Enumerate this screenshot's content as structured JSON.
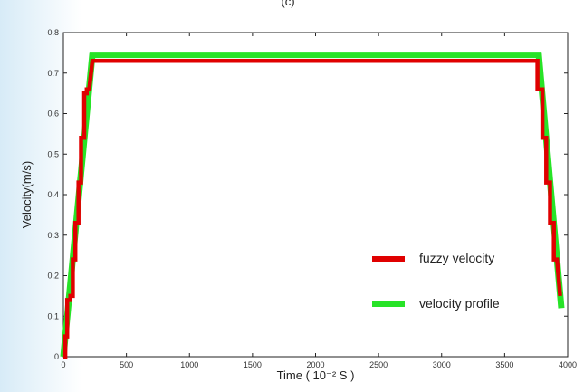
{
  "chart_data": {
    "type": "line",
    "panel_label": "(c)",
    "xlabel": "Time ( 10⁻² S )",
    "ylabel": "Velocity(m/s)",
    "xlim": [
      0,
      4000
    ],
    "ylim": [
      0,
      0.8
    ],
    "x_ticks": [
      0,
      500,
      1000,
      1500,
      2000,
      2500,
      3000,
      3500,
      4000
    ],
    "y_ticks": [
      0,
      0.1,
      0.2,
      0.3,
      0.4,
      0.5,
      0.6,
      0.7,
      0.8
    ],
    "y_tick_labels": [
      "0",
      "0.1",
      "0.2",
      "0.3",
      "0.4",
      "0.5",
      "0.6",
      "0.7",
      "0.8"
    ],
    "grid": false,
    "legend_position": "bottom-right",
    "series": [
      {
        "name": "velocity profile",
        "color": "#27e327",
        "points": [
          [
            0,
            0
          ],
          [
            230,
            0.745
          ],
          [
            3770,
            0.745
          ],
          [
            3950,
            0.12
          ]
        ]
      },
      {
        "name": "fuzzy velocity",
        "color": "#e00000",
        "points": [
          [
            0,
            0.0
          ],
          [
            15,
            0.0
          ],
          [
            15,
            0.05
          ],
          [
            30,
            0.05
          ],
          [
            30,
            0.14
          ],
          [
            55,
            0.14
          ],
          [
            55,
            0.15
          ],
          [
            75,
            0.15
          ],
          [
            75,
            0.24
          ],
          [
            95,
            0.24
          ],
          [
            95,
            0.33
          ],
          [
            120,
            0.33
          ],
          [
            120,
            0.43
          ],
          [
            140,
            0.43
          ],
          [
            140,
            0.54
          ],
          [
            165,
            0.54
          ],
          [
            165,
            0.65
          ],
          [
            185,
            0.65
          ],
          [
            185,
            0.66
          ],
          [
            205,
            0.66
          ],
          [
            230,
            0.73
          ],
          [
            3760,
            0.73
          ],
          [
            3760,
            0.66
          ],
          [
            3800,
            0.66
          ],
          [
            3800,
            0.54
          ],
          [
            3830,
            0.54
          ],
          [
            3830,
            0.43
          ],
          [
            3860,
            0.43
          ],
          [
            3860,
            0.33
          ],
          [
            3890,
            0.33
          ],
          [
            3890,
            0.24
          ],
          [
            3915,
            0.24
          ],
          [
            3940,
            0.15
          ]
        ]
      }
    ]
  }
}
